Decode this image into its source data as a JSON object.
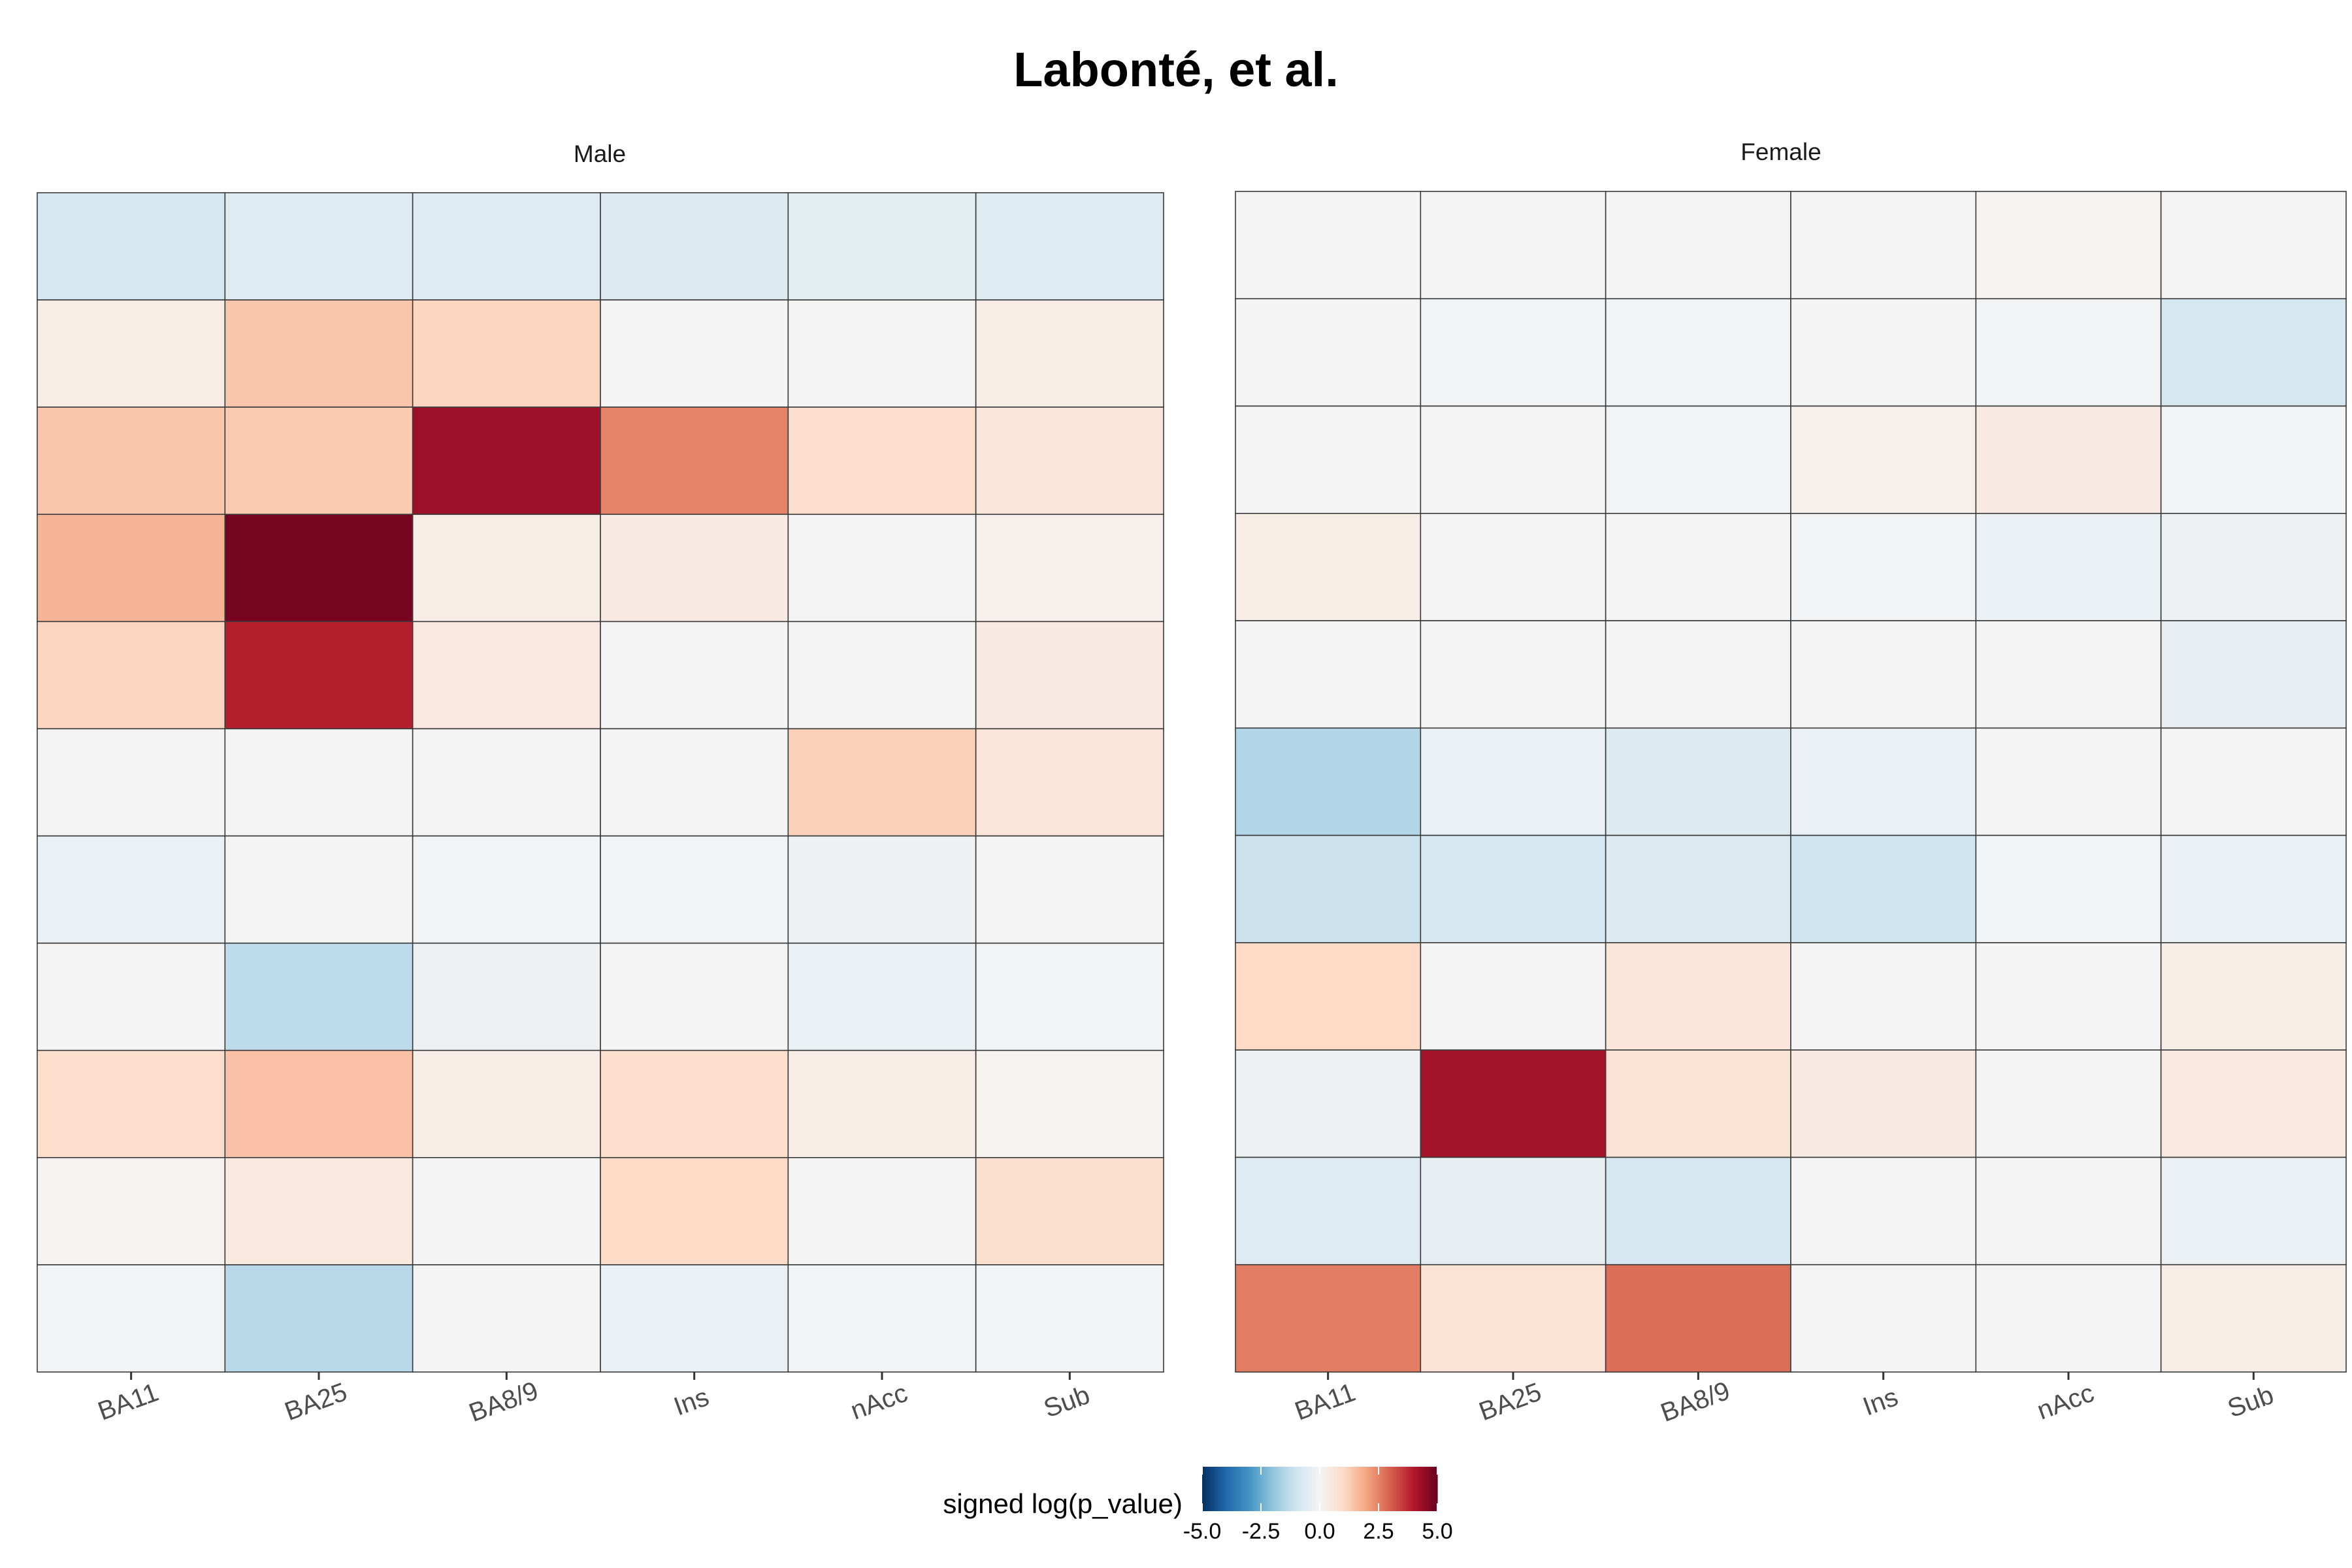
{
  "chart_data": {
    "type": "heatmap",
    "title": "Labonté, et al.",
    "x_categories": [
      "BA11",
      "BA25",
      "BA8/9",
      "Ins",
      "nAcc",
      "Sub"
    ],
    "n_rows": 11,
    "panels": [
      {
        "name": "Male",
        "values": [
          [
            -0.9,
            -0.6,
            -0.6,
            -0.7,
            -0.5,
            -0.6
          ],
          [
            0.3,
            1.4,
            1.1,
            0.0,
            0.0,
            0.3
          ],
          [
            1.4,
            1.3,
            4.3,
            2.5,
            0.9,
            0.6
          ],
          [
            1.7,
            4.8,
            0.3,
            0.4,
            0.0,
            0.2
          ],
          [
            1.1,
            3.9,
            0.5,
            0.0,
            0.0,
            0.4
          ],
          [
            0.0,
            0.0,
            0.0,
            0.0,
            1.2,
            0.6
          ],
          [
            -0.3,
            0.0,
            -0.1,
            -0.1,
            -0.2,
            0.0
          ],
          [
            0.0,
            -1.3,
            -0.2,
            0.0,
            -0.3,
            -0.1
          ],
          [
            0.9,
            1.5,
            0.3,
            0.9,
            0.3,
            0.1
          ],
          [
            0.1,
            0.5,
            0.0,
            1.0,
            0.0,
            0.8
          ],
          [
            -0.1,
            -1.4,
            0.0,
            -0.3,
            -0.1,
            -0.1
          ]
        ]
      },
      {
        "name": "Female",
        "values": [
          [
            0.0,
            0.0,
            0.0,
            0.0,
            0.1,
            0.0
          ],
          [
            0.0,
            -0.1,
            -0.1,
            0.0,
            -0.1,
            -0.9
          ],
          [
            0.0,
            0.0,
            -0.1,
            0.2,
            0.4,
            -0.1
          ],
          [
            0.3,
            0.0,
            0.0,
            -0.1,
            -0.3,
            -0.2
          ],
          [
            0.0,
            0.0,
            0.0,
            0.0,
            0.0,
            -0.4
          ],
          [
            -1.5,
            -0.3,
            -0.7,
            -0.3,
            0.0,
            0.0
          ],
          [
            -1.1,
            -0.9,
            -0.7,
            -1.0,
            -0.1,
            -0.3
          ],
          [
            1.0,
            0.0,
            0.6,
            0.0,
            0.0,
            0.3
          ],
          [
            -0.2,
            4.2,
            0.7,
            0.4,
            0.0,
            0.5
          ],
          [
            -0.6,
            -0.4,
            -0.9,
            0.0,
            0.0,
            -0.3
          ],
          [
            2.6,
            0.7,
            2.8,
            0.0,
            0.0,
            0.3
          ]
        ]
      }
    ],
    "legend": {
      "title": "signed log(p_value)",
      "min": -5.0,
      "max": 5.0,
      "ticks": [
        "-5.0",
        "-2.5",
        "0.0",
        "2.5",
        "5.0"
      ],
      "tick_values": [
        -5,
        -2.5,
        0,
        2.5,
        5
      ],
      "palette": [
        "#053061",
        "#2166ac",
        "#4393c3",
        "#92c5de",
        "#d1e5f0",
        "#f4f4f4",
        "#fddbc7",
        "#f4a582",
        "#d6604d",
        "#b2182b",
        "#67001f"
      ],
      "placement": "bottom-center"
    }
  }
}
